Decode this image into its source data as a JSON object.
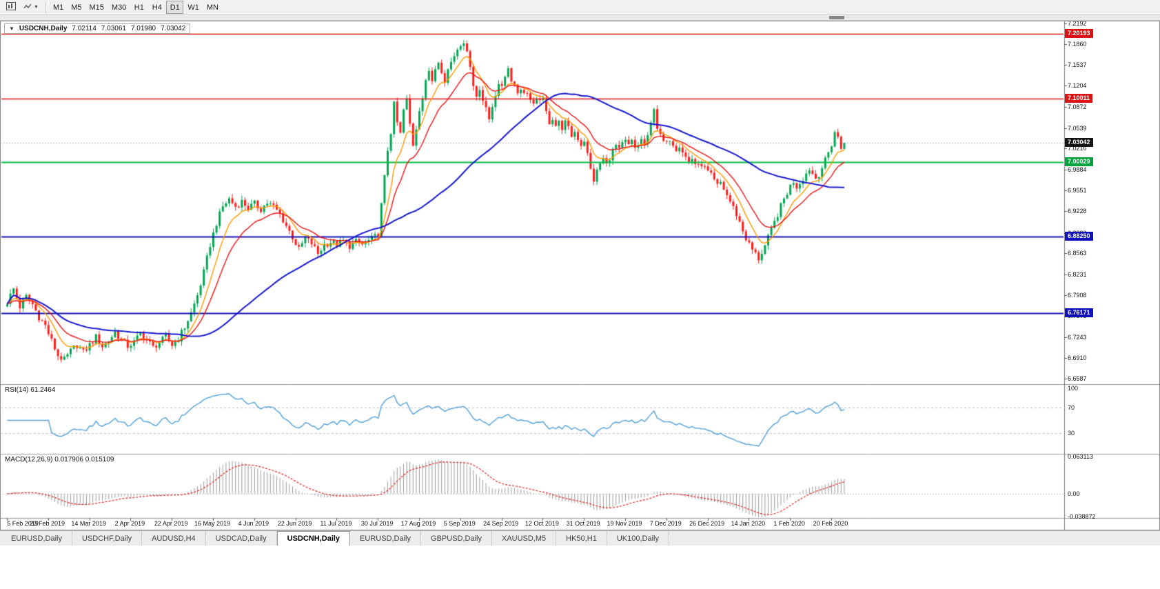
{
  "toolbar": {
    "icon_buttons": [
      {
        "name": "chart-window-icon"
      },
      {
        "name": "cursor-tool-dropdown-icon"
      }
    ],
    "timeframes": [
      "M1",
      "M5",
      "M15",
      "M30",
      "H1",
      "H4",
      "D1",
      "W1",
      "MN"
    ],
    "active_timeframe": "D1"
  },
  "window": {
    "title": {
      "symbol": "USDCNH,Daily",
      "open": "7.02114",
      "high": "7.03061",
      "low": "7.01980",
      "close": "7.03042"
    }
  },
  "price_axis": {
    "labels": [
      "7.2192",
      "7.1860",
      "7.1537",
      "7.1204",
      "7.0872",
      "7.0539",
      "7.0216",
      "6.9884",
      "6.9551",
      "6.9228",
      "6.8886",
      "6.8563",
      "6.8231",
      "6.7908",
      "6.7576",
      "6.7243",
      "6.6910",
      "6.6587"
    ],
    "tags": [
      {
        "text": "7.20193",
        "price": 7.20193,
        "bg": "#dd1111",
        "fg": "#ffffff"
      },
      {
        "text": "7.10011",
        "price": 7.10011,
        "bg": "#dd1111",
        "fg": "#ffffff"
      },
      {
        "text": "7.03042",
        "price": 7.03042,
        "bg": "#141414",
        "fg": "#ffffff"
      },
      {
        "text": "7.00029",
        "price": 7.00029,
        "bg": "#00a33c",
        "fg": "#ffffff"
      },
      {
        "text": "6.88250",
        "price": 6.8825,
        "bg": "#1111bb",
        "fg": "#ffffff"
      },
      {
        "text": "6.76171",
        "price": 6.76171,
        "bg": "#1111bb",
        "fg": "#ffffff"
      }
    ]
  },
  "date_axis": [
    "5 Feb 2019",
    "23 Feb 2019",
    "14 Mar 2019",
    "2 Apr 2019",
    "22 Apr 2019",
    "16 May 2019",
    "4 Jun 2019",
    "22 Jun 2019",
    "11 Jul 2019",
    "30 Jul 2019",
    "17 Aug 2019",
    "5 Sep 2019",
    "24 Sep 2019",
    "12 Oct 2019",
    "31 Oct 2019",
    "19 Nov 2019",
    "7 Dec 2019",
    "26 Dec 2019",
    "14 Jan 2020",
    "1 Feb 2020",
    "20 Feb 2020"
  ],
  "indicators": {
    "rsi": {
      "label": "RSI(14) 61.2464",
      "period": 14,
      "value": 61.2464,
      "axis_labels": [
        "100",
        "70",
        "30"
      ],
      "axis_values": [
        100,
        70,
        30
      ],
      "dashed_levels": [
        70,
        30
      ],
      "line_color": "#4f9fd8"
    },
    "macd": {
      "label": "MACD(12,26,9) 0.017906 0.015109",
      "fast": 12,
      "slow": 26,
      "signal": 9,
      "main_value": 0.017906,
      "signal_value": 0.015109,
      "axis_labels": [
        "0.063113",
        "0.00",
        "-0.038872"
      ],
      "axis_values": [
        0.063113,
        0,
        -0.038872
      ],
      "hist_color": "#9a9a9a",
      "signal_color": "#e02020"
    }
  },
  "chart_data": {
    "type": "candlestick",
    "symbol": "USDCNH",
    "timeframe": "Daily",
    "n_candles": 265,
    "y_range": [
      6.65,
      7.222
    ],
    "x_tick_interval": 13,
    "last_ohlc": {
      "open": 7.02114,
      "high": 7.03061,
      "low": 7.0198,
      "close": 7.03042
    },
    "up_color": "#00a651",
    "down_color": "#ff1c1c",
    "bid_line": {
      "price": 7.03042,
      "color": "#b0b0b0"
    },
    "hlines": [
      {
        "price": 7.20193,
        "color": "#dd1111",
        "width": 1.4
      },
      {
        "price": 7.10011,
        "color": "#dd1111",
        "width": 1.4
      },
      {
        "price": 7.00029,
        "color": "#00bf40",
        "width": 2
      },
      {
        "price": 6.8825,
        "color": "#1111bb",
        "width": 2
      },
      {
        "price": 6.76171,
        "color": "#1111bb",
        "width": 2
      }
    ],
    "moving_averages": [
      {
        "type": "ema",
        "period": 8,
        "color": "#ff9900",
        "width": 1.4
      },
      {
        "type": "ema",
        "period": 16,
        "color": "#ee1111",
        "width": 1.4
      },
      {
        "type": "sma",
        "period": 55,
        "color": "#1515cf",
        "width": 2
      }
    ],
    "close_waypoints": [
      [
        0,
        6.78
      ],
      [
        2,
        6.8
      ],
      [
        4,
        6.772
      ],
      [
        6,
        6.788
      ],
      [
        8,
        6.776
      ],
      [
        10,
        6.756
      ],
      [
        12,
        6.742
      ],
      [
        14,
        6.718
      ],
      [
        16,
        6.695
      ],
      [
        18,
        6.688
      ],
      [
        20,
        6.702
      ],
      [
        22,
        6.712
      ],
      [
        24,
        6.7
      ],
      [
        26,
        6.712
      ],
      [
        28,
        6.724
      ],
      [
        30,
        6.71
      ],
      [
        32,
        6.718
      ],
      [
        34,
        6.732
      ],
      [
        36,
        6.72
      ],
      [
        38,
        6.71
      ],
      [
        40,
        6.716
      ],
      [
        42,
        6.73
      ],
      [
        44,
        6.72
      ],
      [
        46,
        6.708
      ],
      [
        48,
        6.716
      ],
      [
        50,
        6.724
      ],
      [
        52,
        6.712
      ],
      [
        54,
        6.722
      ],
      [
        56,
        6.74
      ],
      [
        58,
        6.762
      ],
      [
        60,
        6.79
      ],
      [
        62,
        6.826
      ],
      [
        64,
        6.87
      ],
      [
        66,
        6.904
      ],
      [
        68,
        6.93
      ],
      [
        70,
        6.942
      ],
      [
        72,
        6.93
      ],
      [
        74,
        6.938
      ],
      [
        76,
        6.928
      ],
      [
        78,
        6.934
      ],
      [
        80,
        6.926
      ],
      [
        82,
        6.936
      ],
      [
        84,
        6.93
      ],
      [
        86,
        6.918
      ],
      [
        88,
        6.9
      ],
      [
        90,
        6.882
      ],
      [
        92,
        6.862
      ],
      [
        94,
        6.88
      ],
      [
        96,
        6.872
      ],
      [
        98,
        6.856
      ],
      [
        100,
        6.87
      ],
      [
        102,
        6.874
      ],
      [
        104,
        6.87
      ],
      [
        106,
        6.876
      ],
      [
        108,
        6.868
      ],
      [
        110,
        6.874
      ],
      [
        112,
        6.87
      ],
      [
        114,
        6.876
      ],
      [
        116,
        6.882
      ],
      [
        117,
        6.888
      ],
      [
        118,
        6.932
      ],
      [
        119,
        6.975
      ],
      [
        120,
        7.02
      ],
      [
        121,
        7.048
      ],
      [
        122,
        7.09
      ],
      [
        123,
        7.062
      ],
      [
        124,
        7.044
      ],
      [
        125,
        7.082
      ],
      [
        126,
        7.098
      ],
      [
        127,
        7.06
      ],
      [
        128,
        7.028
      ],
      [
        129,
        7.055
      ],
      [
        130,
        7.085
      ],
      [
        131,
        7.102
      ],
      [
        132,
        7.125
      ],
      [
        133,
        7.145
      ],
      [
        134,
        7.13
      ],
      [
        135,
        7.152
      ],
      [
        136,
        7.162
      ],
      [
        137,
        7.14
      ],
      [
        138,
        7.125
      ],
      [
        139,
        7.148
      ],
      [
        140,
        7.16
      ],
      [
        141,
        7.172
      ],
      [
        142,
        7.182
      ],
      [
        143,
        7.178
      ],
      [
        144,
        7.192
      ],
      [
        145,
        7.178
      ],
      [
        146,
        7.15
      ],
      [
        147,
        7.12
      ],
      [
        148,
        7.105
      ],
      [
        149,
        7.118
      ],
      [
        150,
        7.098
      ],
      [
        151,
        7.082
      ],
      [
        152,
        7.068
      ],
      [
        153,
        7.09
      ],
      [
        154,
        7.108
      ],
      [
        155,
        7.118
      ],
      [
        156,
        7.122
      ],
      [
        157,
        7.138
      ],
      [
        158,
        7.148
      ],
      [
        159,
        7.132
      ],
      [
        160,
        7.122
      ],
      [
        161,
        7.11
      ],
      [
        162,
        7.118
      ],
      [
        163,
        7.106
      ],
      [
        164,
        7.112
      ],
      [
        165,
        7.098
      ],
      [
        166,
        7.088
      ],
      [
        167,
        7.095
      ],
      [
        168,
        7.102
      ],
      [
        169,
        7.096
      ],
      [
        170,
        7.078
      ],
      [
        171,
        7.064
      ],
      [
        172,
        7.07
      ],
      [
        173,
        7.058
      ],
      [
        174,
        7.062
      ],
      [
        175,
        7.055
      ],
      [
        176,
        7.062
      ],
      [
        177,
        7.052
      ],
      [
        178,
        7.042
      ],
      [
        179,
        7.048
      ],
      [
        180,
        7.038
      ],
      [
        181,
        7.028
      ],
      [
        182,
        7.035
      ],
      [
        183,
        7.012
      ],
      [
        184,
        6.988
      ],
      [
        185,
        6.972
      ],
      [
        186,
        6.985
      ],
      [
        187,
        6.998
      ],
      [
        188,
        7.005
      ],
      [
        189,
        6.996
      ],
      [
        190,
        7.008
      ],
      [
        191,
        7.018
      ],
      [
        192,
        7.026
      ],
      [
        193,
        7.018
      ],
      [
        194,
        7.028
      ],
      [
        195,
        7.032
      ],
      [
        196,
        7.026
      ],
      [
        197,
        7.032
      ],
      [
        198,
        7.022
      ],
      [
        199,
        7.028
      ],
      [
        200,
        7.035
      ],
      [
        201,
        7.028
      ],
      [
        202,
        7.038
      ],
      [
        203,
        7.06
      ],
      [
        204,
        7.088
      ],
      [
        205,
        7.055
      ],
      [
        206,
        7.04
      ],
      [
        207,
        7.032
      ],
      [
        208,
        7.028
      ],
      [
        209,
        7.038
      ],
      [
        210,
        7.03
      ],
      [
        211,
        7.022
      ],
      [
        212,
        7.028
      ],
      [
        213,
        7.018
      ],
      [
        214,
        7.008
      ],
      [
        215,
        7.0
      ],
      [
        216,
        7.006
      ],
      [
        217,
        6.998
      ],
      [
        218,
        6.992
      ],
      [
        219,
        6.998
      ],
      [
        220,
        6.99
      ],
      [
        221,
        6.984
      ],
      [
        222,
        6.978
      ],
      [
        223,
        6.97
      ],
      [
        224,
        6.962
      ],
      [
        225,
        6.968
      ],
      [
        226,
        6.958
      ],
      [
        227,
        6.948
      ],
      [
        228,
        6.938
      ],
      [
        229,
        6.928
      ],
      [
        230,
        6.918
      ],
      [
        231,
        6.905
      ],
      [
        232,
        6.892
      ],
      [
        233,
        6.88
      ],
      [
        234,
        6.87
      ],
      [
        235,
        6.862
      ],
      [
        236,
        6.855
      ],
      [
        237,
        6.848
      ],
      [
        238,
        6.858
      ],
      [
        239,
        6.868
      ],
      [
        240,
        6.88
      ],
      [
        241,
        6.892
      ],
      [
        242,
        6.905
      ],
      [
        243,
        6.918
      ],
      [
        244,
        6.93
      ],
      [
        245,
        6.942
      ],
      [
        246,
        6.952
      ],
      [
        247,
        6.962
      ],
      [
        248,
        6.97
      ],
      [
        249,
        6.962
      ],
      [
        250,
        6.968
      ],
      [
        251,
        6.975
      ],
      [
        252,
        6.982
      ],
      [
        253,
        6.99
      ],
      [
        254,
        6.982
      ],
      [
        255,
        6.975
      ],
      [
        256,
        6.982
      ],
      [
        257,
        6.992
      ],
      [
        258,
        7.002
      ],
      [
        259,
        7.015
      ],
      [
        260,
        7.028
      ],
      [
        261,
        7.048
      ],
      [
        262,
        7.038
      ],
      [
        263,
        7.025
      ],
      [
        264,
        7.03
      ]
    ]
  },
  "tabs": {
    "items": [
      "EURUSD,Daily",
      "USDCHF,Daily",
      "AUDUSD,H4",
      "USDCAD,Daily",
      "USDCNH,Daily",
      "EURUSD,Daily",
      "GBPUSD,Daily",
      "XAUUSD,M5",
      "HK50,H1",
      "UK100,Daily"
    ],
    "active_index": 4
  }
}
